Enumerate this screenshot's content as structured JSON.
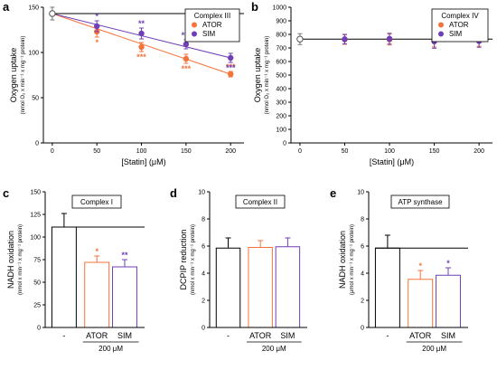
{
  "colors": {
    "ator": "#f5733b",
    "sim": "#6f3fb5",
    "control": "#000000",
    "axis": "#000000"
  },
  "chart_data": [
    {
      "panel": "a",
      "type": "scatter",
      "box_title": "Complex III",
      "xlabel": "[Statin] (μM)",
      "ylabel": "Oxygen uptake",
      "ylabel_sub": "(nmol O₂ x min⁻¹ x mg⁻¹ protein)",
      "xlim": [
        -10,
        215
      ],
      "ylim": [
        0,
        150
      ],
      "xticks": [
        "0",
        "50",
        "100",
        "150",
        "200"
      ],
      "yticks": [
        "0",
        "50",
        "100",
        "150"
      ],
      "control": {
        "x": 0,
        "y": 143,
        "err": 7
      },
      "hline": 143,
      "series": [
        {
          "name": "ATOR",
          "color": "#f5733b",
          "x": [
            50,
            100,
            150,
            200
          ],
          "y": [
            123,
            106,
            93,
            76
          ],
          "err": [
            6,
            5,
            5,
            3
          ],
          "stars": [
            "*",
            "***",
            "***",
            "***"
          ],
          "star_pos": [
            "below",
            "below",
            "below",
            "above"
          ],
          "fit": [
            [
              0,
              143
            ],
            [
              200,
              76
            ]
          ]
        },
        {
          "name": "SIM",
          "color": "#6f3fb5",
          "x": [
            50,
            100,
            150,
            200
          ],
          "y": [
            129,
            121,
            109,
            94
          ],
          "err": [
            6,
            6,
            5,
            5
          ],
          "stars": [
            "*",
            "**",
            "***",
            "***"
          ],
          "star_pos": [
            "above",
            "above",
            "above",
            "below"
          ],
          "fit": [
            [
              0,
              143
            ],
            [
              200,
              94
            ]
          ]
        }
      ]
    },
    {
      "panel": "b",
      "type": "scatter",
      "box_title": "Complex IV",
      "xlabel": "[Statin] (μM)",
      "ylabel": "Oxygen uptake",
      "ylabel_sub": "(nmol O₂ x min⁻¹ x mg⁻¹ protein)",
      "xlim": [
        -10,
        215
      ],
      "ylim": [
        0,
        1000
      ],
      "xticks": [
        "0",
        "50",
        "100",
        "150",
        "200"
      ],
      "yticks": [
        "0",
        "100",
        "200",
        "300",
        "400",
        "500",
        "600",
        "700",
        "800",
        "900",
        "1000"
      ],
      "control": {
        "x": 0,
        "y": 765,
        "err": 40
      },
      "hline": 765,
      "series": [
        {
          "name": "ATOR",
          "color": "#f5733b",
          "x": [
            50,
            100,
            150,
            200
          ],
          "y": [
            762,
            762,
            752,
            752
          ],
          "err": [
            35,
            40,
            45,
            40
          ]
        },
        {
          "name": "SIM",
          "color": "#6f3fb5",
          "x": [
            50,
            100,
            150,
            200
          ],
          "y": [
            765,
            768,
            748,
            750
          ],
          "err": [
            35,
            40,
            50,
            45
          ]
        }
      ]
    },
    {
      "panel": "c",
      "type": "bar",
      "box_title": "Complex I",
      "ylabel": "NADH oxidation",
      "ylabel_sub": "(nmol x min⁻¹ x mg⁻¹ protein)",
      "ylim": [
        0,
        150
      ],
      "yticks": [
        "0",
        "25",
        "50",
        "75",
        "100",
        "125",
        "150"
      ],
      "categories": [
        "-",
        "ATOR",
        "SIM"
      ],
      "values": [
        111,
        72,
        67
      ],
      "errors": [
        15,
        7,
        8
      ],
      "colors": [
        "#000000",
        "#f5733b",
        "#6f3fb5"
      ],
      "stars": [
        "",
        "*",
        "**"
      ],
      "hline": 111,
      "concentration": "200 μM"
    },
    {
      "panel": "d",
      "type": "bar",
      "box_title": "Complex II",
      "ylabel": "DCPIP reduction",
      "ylabel_sub": "(nmol x min⁻¹ x mg⁻¹ protein)",
      "ylim": [
        0,
        10
      ],
      "yticks": [
        "0",
        "2",
        "4",
        "6",
        "8",
        "10"
      ],
      "categories": [
        "-",
        "ATOR",
        "SIM"
      ],
      "values": [
        5.85,
        5.9,
        5.95
      ],
      "errors": [
        0.75,
        0.5,
        0.65
      ],
      "colors": [
        "#000000",
        "#f5733b",
        "#6f3fb5"
      ],
      "stars": [
        "",
        "",
        ""
      ],
      "hline": null,
      "concentration": "200 μM"
    },
    {
      "panel": "e",
      "type": "bar",
      "box_title": "ATP synthase",
      "ylabel": "NADH oxidation",
      "ylabel_sub": "(μmol x min⁻¹ x mg⁻¹ protein)",
      "ylim": [
        0,
        10
      ],
      "yticks": [
        "0",
        "2",
        "4",
        "6",
        "8",
        "10"
      ],
      "categories": [
        "-",
        "ATOR",
        "SIM"
      ],
      "values": [
        5.85,
        3.55,
        3.85
      ],
      "errors": [
        0.95,
        0.65,
        0.55
      ],
      "colors": [
        "#000000",
        "#f5733b",
        "#6f3fb5"
      ],
      "stars": [
        "",
        "*",
        "*"
      ],
      "hline": 5.85,
      "concentration": "200 μM"
    }
  ]
}
